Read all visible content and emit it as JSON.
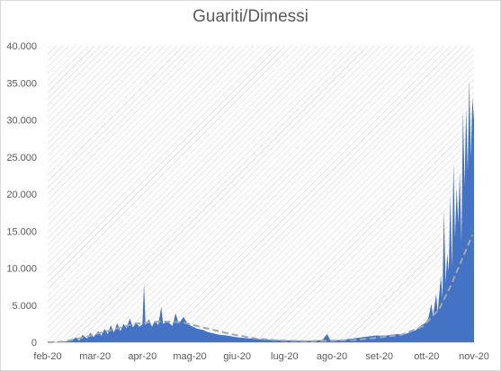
{
  "chart_data": {
    "type": "area",
    "title": "Guariti/Dimessi",
    "xlabel": "",
    "ylabel": "",
    "ylim": [
      0,
      40000
    ],
    "yticks": [
      0,
      5000,
      10000,
      15000,
      20000,
      25000,
      30000,
      35000,
      40000
    ],
    "ytick_labels": [
      "0",
      "5.000",
      "10.000",
      "15.000",
      "20.000",
      "25.000",
      "30.000",
      "35.000",
      "40.000"
    ],
    "xtick_labels": [
      "feb-20",
      "mar-20",
      "apr-20",
      "mag-20",
      "giu-20",
      "lug-20",
      "ago-20",
      "set-20",
      "ott-20",
      "nov-20"
    ],
    "x_start": "2020-02-20",
    "x_end": "2020-11-16",
    "plot_background": "diagonal hatch",
    "series": [
      {
        "style": "filled area",
        "color": "#4472c4",
        "points": [
          [
            "2020-02-20",
            0
          ],
          [
            "2020-02-28",
            30
          ],
          [
            "2020-03-03",
            120
          ],
          [
            "2020-03-06",
            250
          ],
          [
            "2020-03-09",
            650
          ],
          [
            "2020-03-11",
            200
          ],
          [
            "2020-03-13",
            1000
          ],
          [
            "2020-03-16",
            500
          ],
          [
            "2020-03-18",
            1300
          ],
          [
            "2020-03-20",
            700
          ],
          [
            "2020-03-23",
            1500
          ],
          [
            "2020-03-25",
            900
          ],
          [
            "2020-03-27",
            1800
          ],
          [
            "2020-03-29",
            1100
          ],
          [
            "2020-03-31",
            2300
          ],
          [
            "2020-04-02",
            1300
          ],
          [
            "2020-04-04",
            2600
          ],
          [
            "2020-04-06",
            1500
          ],
          [
            "2020-04-08",
            2500
          ],
          [
            "2020-04-10",
            1900
          ],
          [
            "2020-04-12",
            3200
          ],
          [
            "2020-04-14",
            2000
          ],
          [
            "2020-04-16",
            2700
          ],
          [
            "2020-04-18",
            2100
          ],
          [
            "2020-04-20",
            2400
          ],
          [
            "2020-04-21",
            8000
          ],
          [
            "2020-04-22",
            2300
          ],
          [
            "2020-04-24",
            3100
          ],
          [
            "2020-04-26",
            2100
          ],
          [
            "2020-04-28",
            2900
          ],
          [
            "2020-04-30",
            2300
          ],
          [
            "2020-05-02",
            4800
          ],
          [
            "2020-05-03",
            2500
          ],
          [
            "2020-05-06",
            2800
          ],
          [
            "2020-05-09",
            2200
          ],
          [
            "2020-05-11",
            3900
          ],
          [
            "2020-05-13",
            2500
          ],
          [
            "2020-05-16",
            3400
          ],
          [
            "2020-05-19",
            2400
          ],
          [
            "2020-05-22",
            2100
          ],
          [
            "2020-05-25",
            1800
          ],
          [
            "2020-05-28",
            1700
          ],
          [
            "2020-05-31",
            1400
          ],
          [
            "2020-06-04",
            1200
          ],
          [
            "2020-06-08",
            1000
          ],
          [
            "2020-06-13",
            900
          ],
          [
            "2020-06-18",
            700
          ],
          [
            "2020-06-23",
            600
          ],
          [
            "2020-06-28",
            500
          ],
          [
            "2020-07-05",
            400
          ],
          [
            "2020-07-12",
            300
          ],
          [
            "2020-07-20",
            250
          ],
          [
            "2020-07-28",
            200
          ],
          [
            "2020-08-05",
            200
          ],
          [
            "2020-08-12",
            300
          ],
          [
            "2020-08-15",
            1100
          ],
          [
            "2020-08-17",
            250
          ],
          [
            "2020-08-24",
            300
          ],
          [
            "2020-08-31",
            500
          ],
          [
            "2020-09-07",
            700
          ],
          [
            "2020-09-14",
            900
          ],
          [
            "2020-09-21",
            900
          ],
          [
            "2020-09-28",
            1100
          ],
          [
            "2020-10-02",
            1000
          ],
          [
            "2020-10-06",
            1300
          ],
          [
            "2020-10-10",
            1600
          ],
          [
            "2020-10-13",
            2200
          ],
          [
            "2020-10-16",
            2600
          ],
          [
            "2020-10-18",
            3200
          ],
          [
            "2020-10-20",
            5200
          ],
          [
            "2020-10-21",
            3500
          ],
          [
            "2020-10-23",
            6500
          ],
          [
            "2020-10-24",
            4000
          ],
          [
            "2020-10-26",
            9000
          ],
          [
            "2020-10-27",
            6000
          ],
          [
            "2020-10-28",
            17800
          ],
          [
            "2020-10-29",
            8000
          ],
          [
            "2020-10-30",
            12000
          ],
          [
            "2020-10-31",
            9500
          ],
          [
            "2020-11-01",
            20000
          ],
          [
            "2020-11-02",
            10000
          ],
          [
            "2020-11-03",
            24200
          ],
          [
            "2020-11-04",
            14000
          ],
          [
            "2020-11-05",
            21000
          ],
          [
            "2020-11-06",
            16000
          ],
          [
            "2020-11-07",
            23000
          ],
          [
            "2020-11-08",
            13500
          ],
          [
            "2020-11-09",
            31500
          ],
          [
            "2020-11-10",
            21000
          ],
          [
            "2020-11-11",
            31800
          ],
          [
            "2020-11-12",
            23000
          ],
          [
            "2020-11-13",
            35500
          ],
          [
            "2020-11-14",
            25000
          ],
          [
            "2020-11-15",
            33000
          ],
          [
            "2020-11-16",
            30000
          ]
        ]
      },
      {
        "style": "dashed trendline",
        "color": "#a6a6a6",
        "points": [
          [
            "2020-02-20",
            0
          ],
          [
            "2020-03-01",
            80
          ],
          [
            "2020-03-15",
            700
          ],
          [
            "2020-04-01",
            1700
          ],
          [
            "2020-04-15",
            2500
          ],
          [
            "2020-05-01",
            2800
          ],
          [
            "2020-05-15",
            2700
          ],
          [
            "2020-06-01",
            1800
          ],
          [
            "2020-06-15",
            1100
          ],
          [
            "2020-07-01",
            500
          ],
          [
            "2020-07-15",
            250
          ],
          [
            "2020-08-01",
            150
          ],
          [
            "2020-08-15",
            200
          ],
          [
            "2020-09-01",
            300
          ],
          [
            "2020-09-15",
            600
          ],
          [
            "2020-10-01",
            1000
          ],
          [
            "2020-10-15",
            2200
          ],
          [
            "2020-10-25",
            4500
          ],
          [
            "2020-11-01",
            7500
          ],
          [
            "2020-11-08",
            11000
          ],
          [
            "2020-11-15",
            14500
          ]
        ]
      }
    ]
  }
}
